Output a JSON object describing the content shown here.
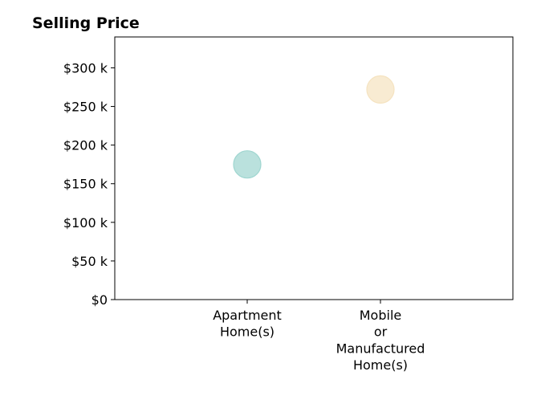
{
  "chart_data": {
    "type": "scatter",
    "title": "Selling Price",
    "xlabel": "",
    "ylabel": "",
    "categories": [
      [
        "Apartment",
        "Home(s)"
      ],
      [
        "Mobile",
        "or",
        "Manufactured",
        "Home(s)"
      ]
    ],
    "values": [
      175000,
      272000
    ],
    "ylim": [
      0,
      340000
    ],
    "yticks": [
      0,
      50000,
      100000,
      150000,
      200000,
      250000,
      300000
    ],
    "ytick_labels": [
      "$0",
      "$50 k",
      "$100 k",
      "$150 k",
      "$200 k",
      "$250 k",
      "$300 k"
    ],
    "colors": {
      "Apartment Home(s)": "#9fd6d0",
      "Mobile or Manufactured Home(s)": "#f5e3c0"
    },
    "grid": false,
    "legend": "none"
  }
}
